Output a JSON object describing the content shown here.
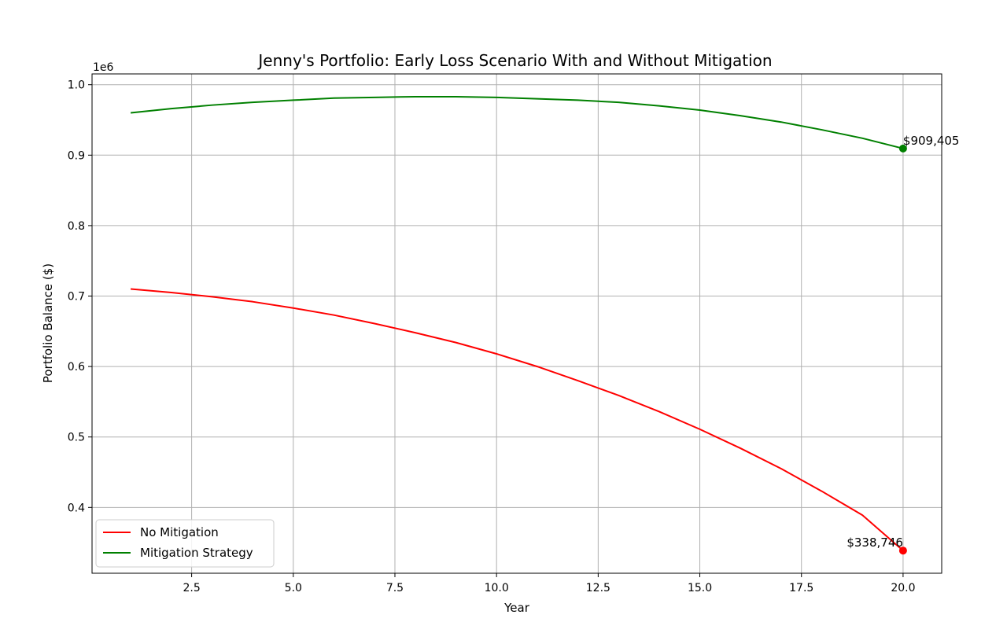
{
  "chart_data": {
    "type": "line",
    "title": "Jenny's Portfolio: Early Loss Scenario With and Without Mitigation",
    "xlabel": "Year",
    "ylabel": "Portfolio Balance ($)",
    "offset_label": "1e6",
    "xlim": [
      0.05,
      20.95
    ],
    "ylim": [
      0.3066,
      1.0153
    ],
    "xticks": [
      2.5,
      5.0,
      7.5,
      10.0,
      12.5,
      15.0,
      17.5,
      20.0
    ],
    "xtick_labels": [
      "2.5",
      "5.0",
      "7.5",
      "10.0",
      "12.5",
      "15.0",
      "17.5",
      "20.0"
    ],
    "yticks": [
      0.4,
      0.5,
      0.6,
      0.7,
      0.8,
      0.9,
      1.0
    ],
    "ytick_labels": [
      "0.4",
      "0.5",
      "0.6",
      "0.7",
      "0.8",
      "0.9",
      "1.0"
    ],
    "grid": true,
    "legend_position": "lower-left",
    "x": [
      1,
      2,
      3,
      4,
      5,
      6,
      7,
      8,
      9,
      10,
      11,
      12,
      13,
      14,
      15,
      16,
      17,
      18,
      19,
      20
    ],
    "series": [
      {
        "name": "No Mitigation",
        "color": "#ff0000",
        "values": [
          0.71,
          0.705,
          0.699,
          0.692,
          0.683,
          0.673,
          0.661,
          0.648,
          0.634,
          0.618,
          0.6,
          0.58,
          0.559,
          0.536,
          0.511,
          0.484,
          0.455,
          0.423,
          0.389,
          0.338746
        ]
      },
      {
        "name": "Mitigation Strategy",
        "color": "#008000",
        "values": [
          0.96,
          0.966,
          0.971,
          0.975,
          0.978,
          0.981,
          0.982,
          0.983,
          0.983,
          0.982,
          0.98,
          0.978,
          0.975,
          0.97,
          0.964,
          0.956,
          0.947,
          0.936,
          0.924,
          0.909405
        ]
      }
    ],
    "annotations": [
      {
        "series": 0,
        "x": 20,
        "y": 0.338746,
        "text": "$338,746",
        "color": "#ff0000"
      },
      {
        "series": 1,
        "x": 20,
        "y": 0.909405,
        "text": "$909,405",
        "color": "#008000"
      }
    ]
  }
}
